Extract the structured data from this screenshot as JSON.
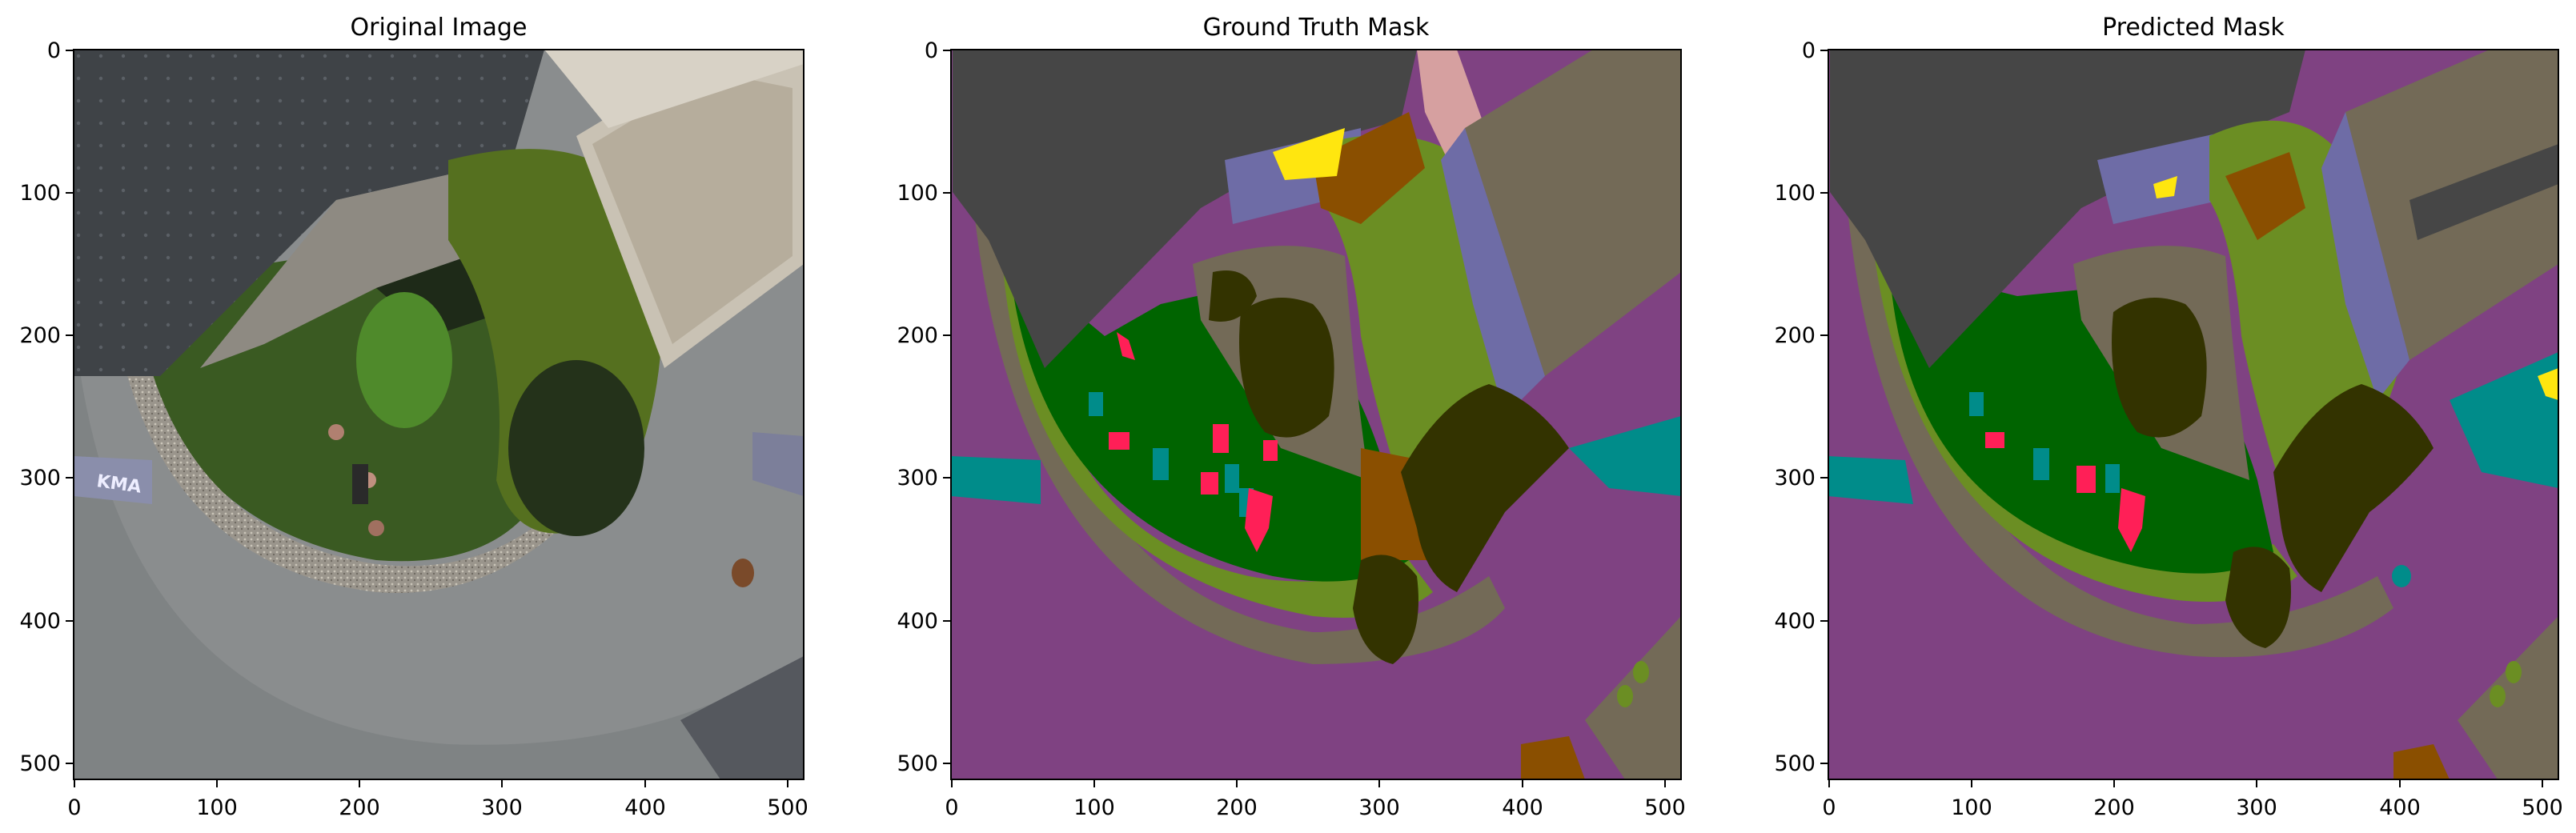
{
  "figure": {
    "panels": [
      {
        "title": "Original Image",
        "x_ticks": [
          "0",
          "100",
          "200",
          "300",
          "400",
          "500"
        ],
        "y_ticks": [
          "0",
          "100",
          "200",
          "300",
          "400",
          "500"
        ],
        "overlay_text": "KMA"
      },
      {
        "title": "Ground Truth Mask",
        "x_ticks": [
          "0",
          "100",
          "200",
          "300",
          "400",
          "500"
        ],
        "y_ticks": [
          "0",
          "100",
          "200",
          "300",
          "400",
          "500"
        ]
      },
      {
        "title": "Predicted Mask",
        "x_ticks": [
          "0",
          "100",
          "200",
          "300",
          "400",
          "500"
        ],
        "y_ticks": [
          "0",
          "100",
          "200",
          "300",
          "400",
          "500"
        ]
      }
    ],
    "axis_range": [
      0,
      512
    ],
    "colors": {
      "road": "#7F4282",
      "sidewalk_band": "#736A57",
      "grass": "#006400",
      "vegetation_light": "#6B8E23",
      "roof": "#464646",
      "roof_tan": "#736A57",
      "tree": "#333300",
      "person": "#FF1F57",
      "object_teal": "#008C8A",
      "wall_purple": "#6E6CA6",
      "soil": "#8A4F00",
      "pink": "#D6A0A0",
      "yellow": "#FFE60F"
    }
  }
}
